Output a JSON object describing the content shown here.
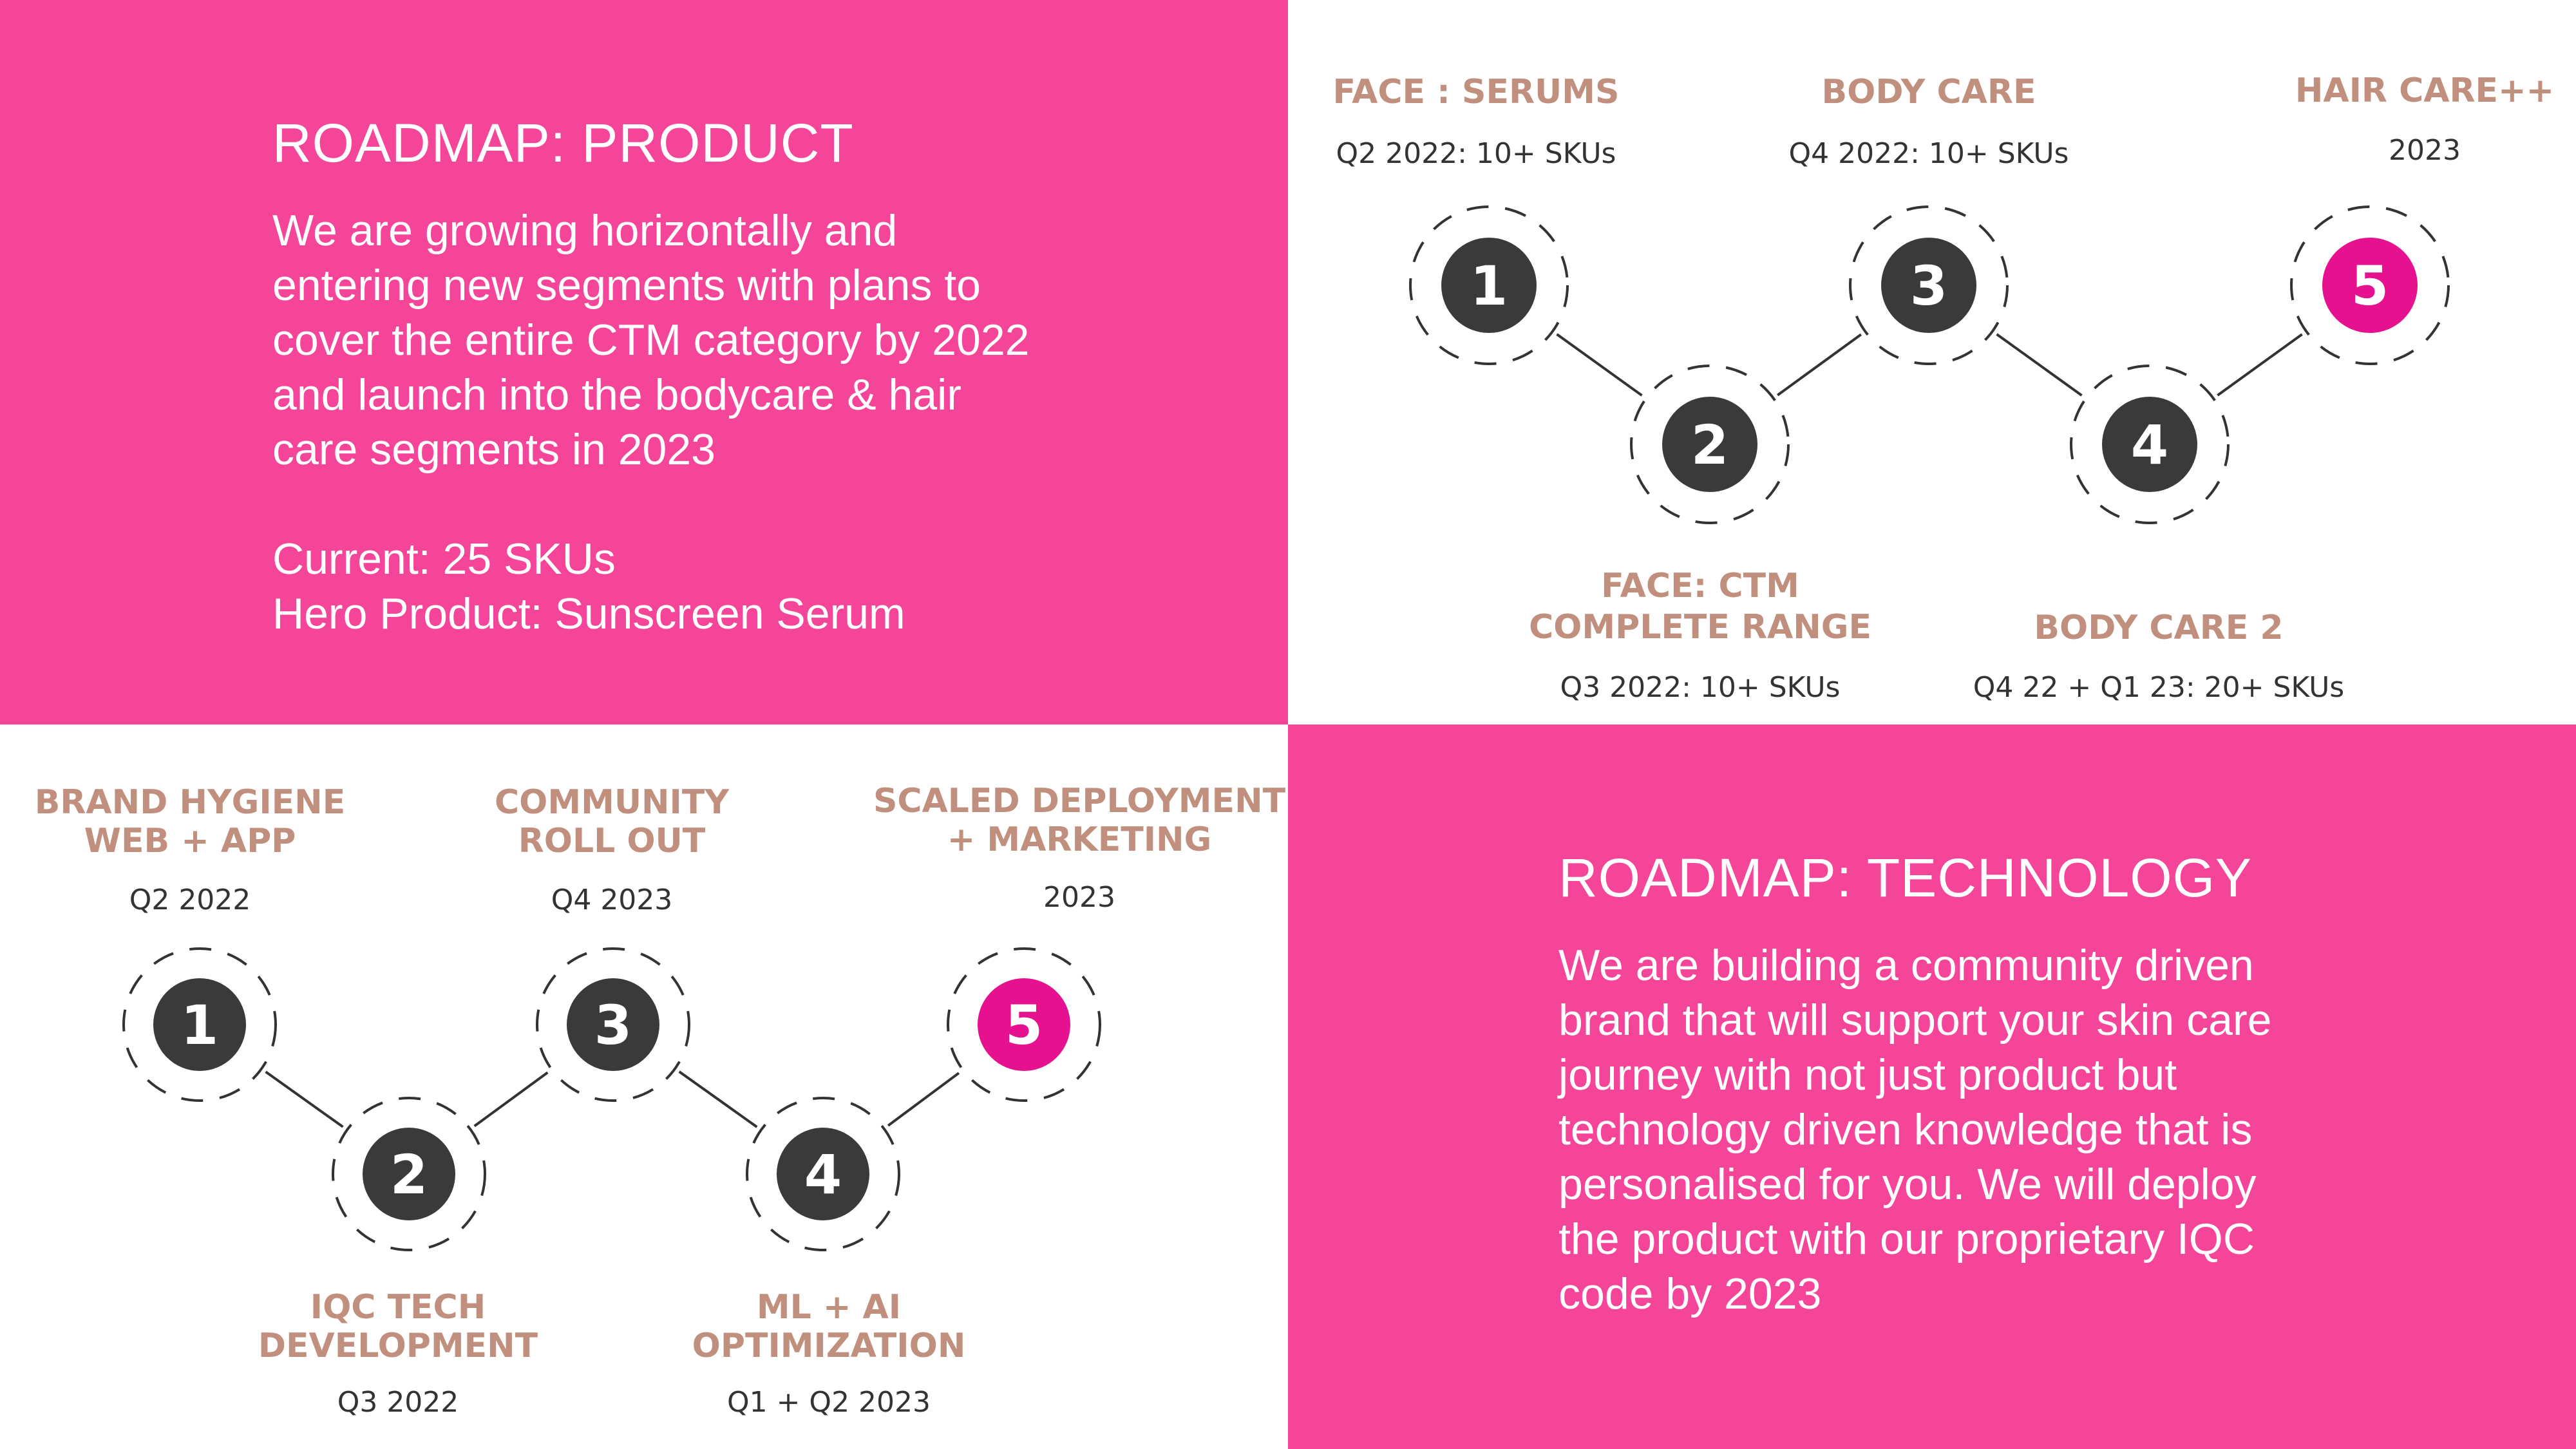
{
  "product": {
    "title": "ROADMAP: PRODUCT",
    "body_lines": [
      "We are growing horizontally and",
      "entering new segments with plans to",
      "cover the entire CTM category by 2022",
      "and launch into the bodycare & hair",
      "care segments in 2023"
    ],
    "current": "Current: 25 SKUs",
    "hero": "Hero Product: Sunscreen Serum"
  },
  "technology": {
    "title": "ROADMAP: TECHNOLOGY",
    "body_lines": [
      "We are building a community driven",
      "brand that will support your skin care",
      "journey with not just product but",
      "technology driven knowledge that is",
      "personalised for you. We will deploy",
      "the product with our proprietary IQC",
      "code by 2023"
    ]
  },
  "product_roadmap": {
    "steps": [
      {
        "number": "1",
        "heading_lines": [
          "FACE : SERUMS"
        ],
        "date": "Q2 2022: 10+ SKUs"
      },
      {
        "number": "2",
        "heading_lines": [
          "FACE: CTM",
          "COMPLETE RANGE"
        ],
        "date": "Q3 2022: 10+ SKUs"
      },
      {
        "number": "3",
        "heading_lines": [
          "BODY CARE"
        ],
        "date": "Q4 2022: 10+ SKUs"
      },
      {
        "number": "4",
        "heading_lines": [
          "BODY CARE 2"
        ],
        "date": "Q4 22 + Q1 23: 20+ SKUs"
      },
      {
        "number": "5",
        "heading_lines": [
          "HAIR CARE++"
        ],
        "date": "2023"
      }
    ]
  },
  "tech_roadmap": {
    "steps": [
      {
        "number": "1",
        "heading_lines": [
          "BRAND HYGIENE",
          "WEB + APP"
        ],
        "date": "Q2 2022"
      },
      {
        "number": "2",
        "heading_lines": [
          "IQC TECH",
          "DEVELOPMENT"
        ],
        "date": "Q3 2022"
      },
      {
        "number": "3",
        "heading_lines": [
          "COMMUNITY",
          "ROLL OUT"
        ],
        "date": "Q4 2023"
      },
      {
        "number": "4",
        "heading_lines": [
          "ML + AI",
          "OPTIMIZATION"
        ],
        "date": "Q1 + Q2 2023"
      },
      {
        "number": "5",
        "heading_lines": [
          "SCALED DEPLOYMENT",
          "+ MARKETING"
        ],
        "date": "2023"
      }
    ]
  },
  "colors": {
    "slide_pink": "#f54598",
    "accent_magenta": "#e5118e",
    "node_dark": "#3a3a3a",
    "heading_tan": "#c08f7e",
    "date_text": "#333333",
    "connector": "#333333"
  }
}
